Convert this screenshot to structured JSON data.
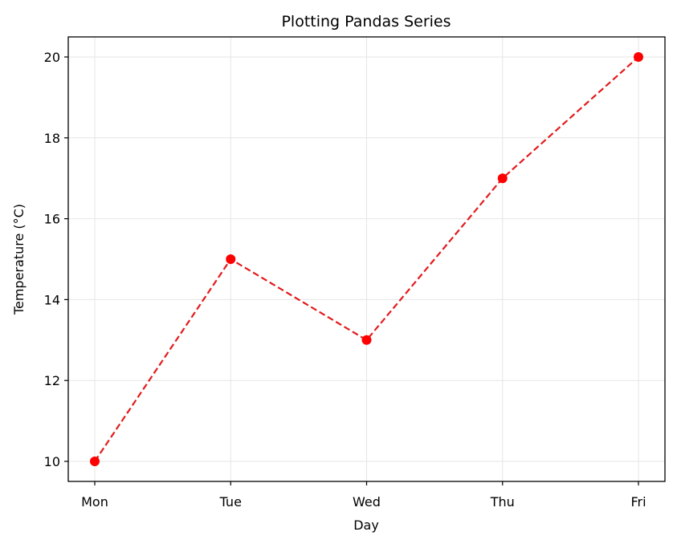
{
  "chart_data": {
    "type": "line",
    "title": "Plotting Pandas Series",
    "xlabel": "Day",
    "ylabel": "Temperature (°C)",
    "categories": [
      "Mon",
      "Tue",
      "Wed",
      "Thu",
      "Fri"
    ],
    "values": [
      10,
      15,
      13,
      17,
      20
    ],
    "series": [
      {
        "name": "Temperature",
        "values": [
          10,
          15,
          13,
          17,
          20
        ],
        "color": "#ff0000",
        "linestyle": "dashed",
        "marker": "circle"
      }
    ],
    "yticks": [
      10,
      12,
      14,
      16,
      18,
      20
    ],
    "ylim": [
      9.5,
      20.5
    ],
    "grid": true,
    "legend": null
  },
  "colors": {
    "line": "#e31a1c",
    "marker": "#ff0000",
    "grid": "#e6e6e6",
    "frame": "#000000"
  }
}
